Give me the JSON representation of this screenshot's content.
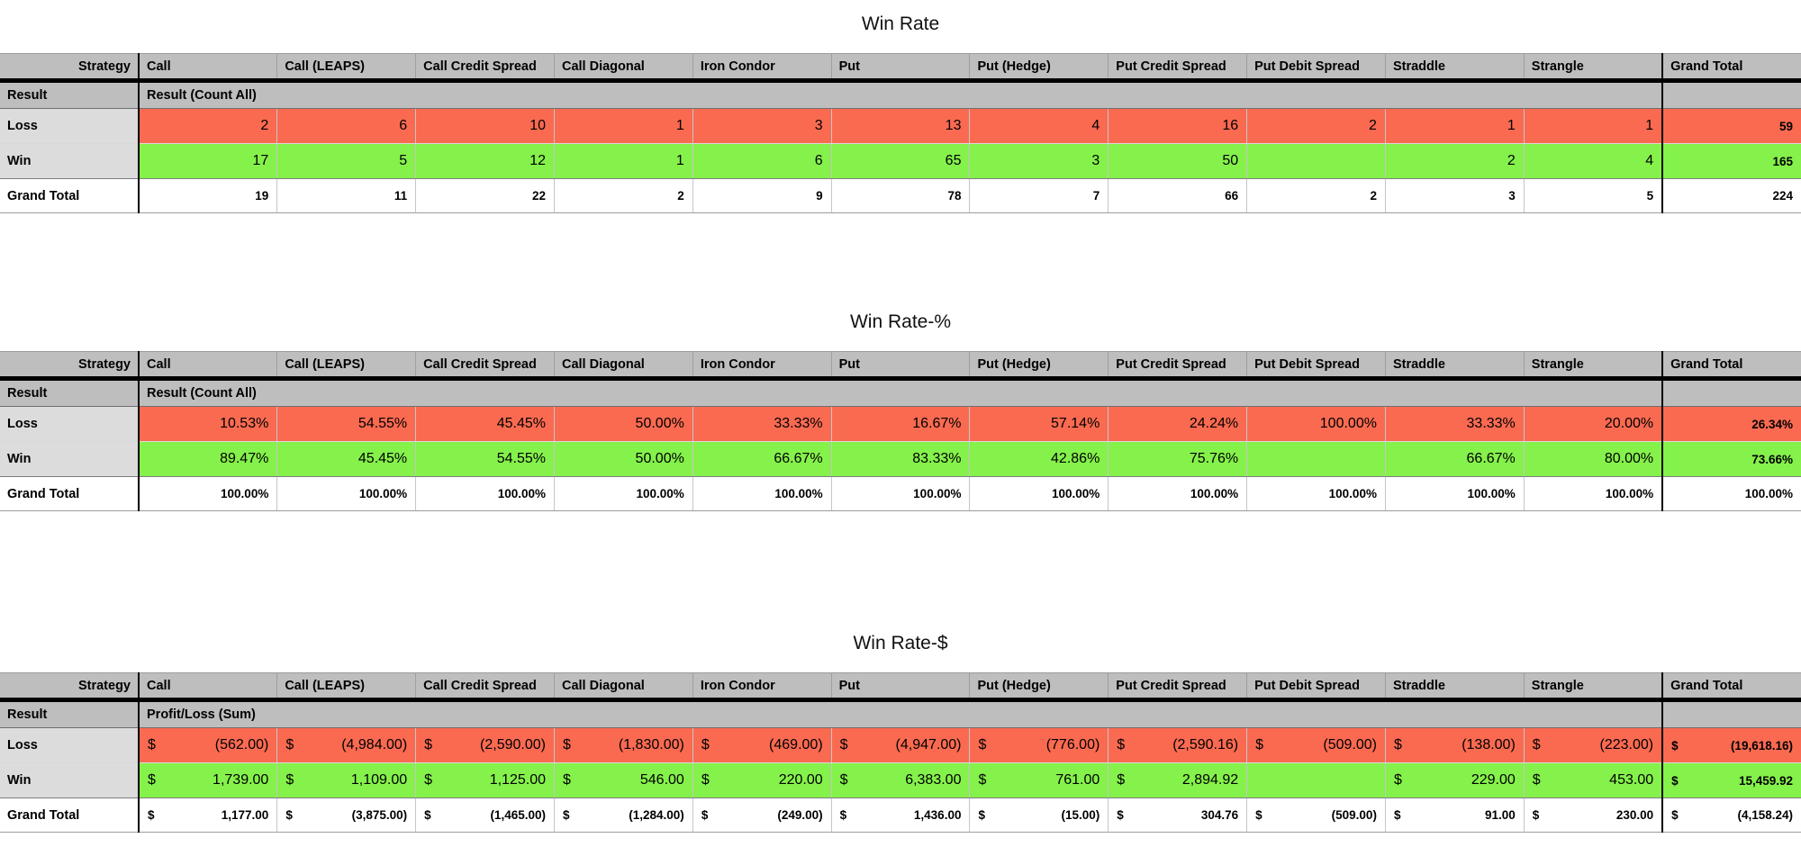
{
  "colors": {
    "loss_red": "#f96a51",
    "win_green": "#85f14b",
    "header_gray": "#bebebe",
    "row_label_gray": "#dcdcdc",
    "divider_black": "#000000"
  },
  "tables": [
    {
      "title": "Win Rate",
      "corner_label": "Strategy",
      "row_header_label": "Result",
      "measure_label": "Result (Count All)",
      "currency": false,
      "columns": [
        "Call",
        "Call (LEAPS)",
        "Call Credit Spread",
        "Call Diagonal",
        "Iron Condor",
        "Put",
        "Put (Hedge)",
        "Put Credit Spread",
        "Put Debit Spread",
        "Straddle",
        "Strangle"
      ],
      "grand_total_column_label": "Grand Total",
      "rows": [
        {
          "label": "Loss",
          "kind": "loss",
          "values": [
            "2",
            "6",
            "10",
            "1",
            "3",
            "13",
            "4",
            "16",
            "2",
            "1",
            "1"
          ],
          "total": "59"
        },
        {
          "label": "Win",
          "kind": "win",
          "values": [
            "17",
            "5",
            "12",
            "1",
            "6",
            "65",
            "3",
            "50",
            null,
            "2",
            "4"
          ],
          "total": "165"
        },
        {
          "label": "Grand Total",
          "kind": "total",
          "values": [
            "19",
            "11",
            "22",
            "2",
            "9",
            "78",
            "7",
            "66",
            "2",
            "3",
            "5"
          ],
          "total": "224"
        }
      ]
    },
    {
      "title": "Win Rate-%",
      "corner_label": "Strategy",
      "row_header_label": "Result",
      "measure_label": "Result (Count All)",
      "currency": false,
      "columns": [
        "Call",
        "Call (LEAPS)",
        "Call Credit Spread",
        "Call Diagonal",
        "Iron Condor",
        "Put",
        "Put (Hedge)",
        "Put Credit Spread",
        "Put Debit Spread",
        "Straddle",
        "Strangle"
      ],
      "grand_total_column_label": "Grand Total",
      "rows": [
        {
          "label": "Loss",
          "kind": "loss",
          "values": [
            "10.53%",
            "54.55%",
            "45.45%",
            "50.00%",
            "33.33%",
            "16.67%",
            "57.14%",
            "24.24%",
            "100.00%",
            "33.33%",
            "20.00%"
          ],
          "total": "26.34%"
        },
        {
          "label": "Win",
          "kind": "win",
          "values": [
            "89.47%",
            "45.45%",
            "54.55%",
            "50.00%",
            "66.67%",
            "83.33%",
            "42.86%",
            "75.76%",
            null,
            "66.67%",
            "80.00%"
          ],
          "total": "73.66%"
        },
        {
          "label": "Grand Total",
          "kind": "total",
          "values": [
            "100.00%",
            "100.00%",
            "100.00%",
            "100.00%",
            "100.00%",
            "100.00%",
            "100.00%",
            "100.00%",
            "100.00%",
            "100.00%",
            "100.00%"
          ],
          "total": "100.00%"
        }
      ]
    },
    {
      "title": "Win Rate-$",
      "corner_label": "Strategy",
      "row_header_label": "Result",
      "measure_label": "Profit/Loss (Sum)",
      "currency": true,
      "currency_symbol": "$",
      "columns": [
        "Call",
        "Call (LEAPS)",
        "Call Credit Spread",
        "Call Diagonal",
        "Iron Condor",
        "Put",
        "Put (Hedge)",
        "Put Credit Spread",
        "Put Debit Spread",
        "Straddle",
        "Strangle"
      ],
      "grand_total_column_label": "Grand Total",
      "rows": [
        {
          "label": "Loss",
          "kind": "loss",
          "values": [
            "(562.00)",
            "(4,984.00)",
            "(2,590.00)",
            "(1,830.00)",
            "(469.00)",
            "(4,947.00)",
            "(776.00)",
            "(2,590.16)",
            "(509.00)",
            "(138.00)",
            "(223.00)"
          ],
          "total": "(19,618.16)"
        },
        {
          "label": "Win",
          "kind": "win",
          "values": [
            "1,739.00",
            "1,109.00",
            "1,125.00",
            "546.00",
            "220.00",
            "6,383.00",
            "761.00",
            "2,894.92",
            null,
            "229.00",
            "453.00"
          ],
          "total": "15,459.92"
        },
        {
          "label": "Grand Total",
          "kind": "total",
          "values": [
            "1,177.00",
            "(3,875.00)",
            "(1,465.00)",
            "(1,284.00)",
            "(249.00)",
            "1,436.00",
            "(15.00)",
            "304.76",
            "(509.00)",
            "91.00",
            "230.00"
          ],
          "total": "(4,158.24)"
        }
      ]
    }
  ]
}
